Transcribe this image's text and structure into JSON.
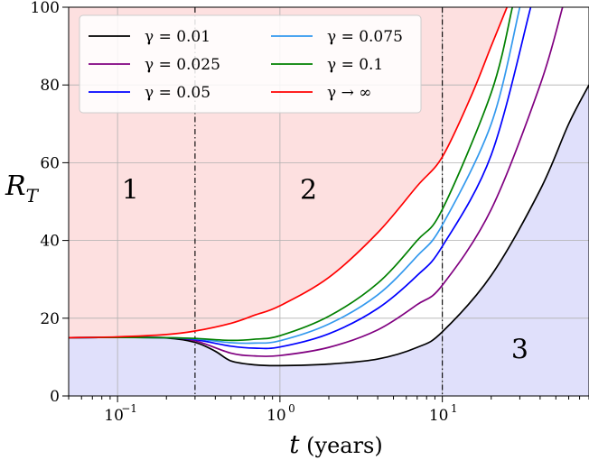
{
  "chart_data": {
    "type": "line",
    "title": "",
    "xlabel": "t (years)",
    "ylabel": "R_T",
    "x_scale": "log",
    "xlim": [
      0.05,
      80
    ],
    "ylim": [
      0,
      100
    ],
    "grid": true,
    "legend_placement": "top-left",
    "x_ticks": [
      {
        "value": 0.1,
        "base": "10",
        "exp": "−1"
      },
      {
        "value": 1,
        "base": "10",
        "exp": "0"
      },
      {
        "value": 10,
        "base": "10",
        "exp": "1"
      }
    ],
    "y_ticks": [
      0,
      20,
      40,
      60,
      80,
      100
    ],
    "y_tick_labels": [
      "0",
      "20",
      "40",
      "60",
      "80",
      "100"
    ],
    "vertical_lines": [
      0.3,
      10
    ],
    "regions": [
      {
        "label": "1",
        "color": "#fde0e0",
        "text_at": [
          0.12,
          53
        ]
      },
      {
        "label": "2",
        "color": "#fde0e0",
        "text_at": [
          1.5,
          53
        ]
      },
      {
        "label": "3",
        "color": "#e0e0fb",
        "text_at": [
          30,
          12
        ]
      }
    ],
    "series": [
      {
        "name": "γ = 0.01",
        "color": "#000000",
        "points": [
          [
            0.05,
            15
          ],
          [
            0.1,
            15.05
          ],
          [
            0.2,
            14.9
          ],
          [
            0.3,
            13.8
          ],
          [
            0.4,
            11.5
          ],
          [
            0.5,
            9
          ],
          [
            0.7,
            8
          ],
          [
            1,
            7.8
          ],
          [
            2,
            8.2
          ],
          [
            4,
            9.5
          ],
          [
            7,
            12.5
          ],
          [
            10,
            16.5
          ],
          [
            20,
            31
          ],
          [
            40,
            53
          ],
          [
            60,
            70
          ],
          [
            80,
            80
          ]
        ]
      },
      {
        "name": "γ = 0.025",
        "color": "#800080",
        "points": [
          [
            0.05,
            15
          ],
          [
            0.1,
            15.05
          ],
          [
            0.2,
            15
          ],
          [
            0.3,
            14.2
          ],
          [
            0.5,
            11
          ],
          [
            0.7,
            10.3
          ],
          [
            1,
            10.4
          ],
          [
            2,
            12.5
          ],
          [
            4,
            17
          ],
          [
            7,
            23.5
          ],
          [
            10,
            28.5
          ],
          [
            20,
            48
          ],
          [
            40,
            80
          ],
          [
            55,
            100
          ]
        ]
      },
      {
        "name": "γ = 0.05",
        "color": "#0000ff",
        "points": [
          [
            0.05,
            15
          ],
          [
            0.1,
            15.05
          ],
          [
            0.2,
            15
          ],
          [
            0.3,
            14.5
          ],
          [
            0.5,
            12.8
          ],
          [
            0.7,
            12.3
          ],
          [
            1,
            12.6
          ],
          [
            2,
            16
          ],
          [
            4,
            22.5
          ],
          [
            7,
            31
          ],
          [
            10,
            38.5
          ],
          [
            20,
            62
          ],
          [
            35,
            100
          ]
        ]
      },
      {
        "name": "γ = 0.075",
        "color": "#3399ee",
        "points": [
          [
            0.05,
            15
          ],
          [
            0.1,
            15.05
          ],
          [
            0.2,
            15
          ],
          [
            0.3,
            14.7
          ],
          [
            0.5,
            13.7
          ],
          [
            0.7,
            13.6
          ],
          [
            1,
            14.2
          ],
          [
            2,
            18.5
          ],
          [
            4,
            26
          ],
          [
            7,
            36
          ],
          [
            10,
            44
          ],
          [
            20,
            70
          ],
          [
            30,
            100
          ]
        ]
      },
      {
        "name": "γ = 0.1",
        "color": "#008000",
        "points": [
          [
            0.05,
            15
          ],
          [
            0.1,
            15.05
          ],
          [
            0.2,
            15
          ],
          [
            0.3,
            14.8
          ],
          [
            0.5,
            14.3
          ],
          [
            0.7,
            14.6
          ],
          [
            1,
            15.5
          ],
          [
            2,
            20.5
          ],
          [
            4,
            29
          ],
          [
            7,
            40
          ],
          [
            10,
            48
          ],
          [
            20,
            78
          ],
          [
            27,
            100
          ]
        ]
      },
      {
        "name": "γ → ∞",
        "color": "#ff0000",
        "points": [
          [
            0.05,
            15
          ],
          [
            0.1,
            15.2
          ],
          [
            0.2,
            15.8
          ],
          [
            0.3,
            16.7
          ],
          [
            0.5,
            18.7
          ],
          [
            0.7,
            20.8
          ],
          [
            1,
            23.2
          ],
          [
            2,
            30.5
          ],
          [
            4,
            42
          ],
          [
            7,
            54
          ],
          [
            10,
            61.5
          ],
          [
            15,
            77
          ],
          [
            20,
            90
          ],
          [
            25,
            100
          ]
        ]
      }
    ]
  }
}
